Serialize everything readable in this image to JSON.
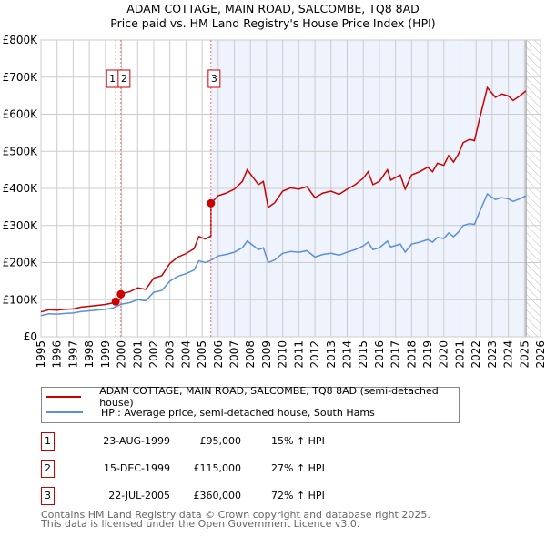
{
  "title": "ADAM COTTAGE, MAIN ROAD, SALCOMBE, TQ8 8AD",
  "subtitle": "Price paid vs. HM Land Registry's House Price Index (HPI)",
  "chart_data": {
    "type": "line",
    "xlim": [
      1995,
      2026
    ],
    "ylim": [
      0,
      800000
    ],
    "ytick_labels": [
      "£0",
      "£100K",
      "£200K",
      "£300K",
      "£400K",
      "£500K",
      "£600K",
      "£700K",
      "£800K"
    ],
    "xtick_labels": [
      "1995",
      "1996",
      "1997",
      "1998",
      "1999",
      "2000",
      "2001",
      "2002",
      "2003",
      "2004",
      "2005",
      "2006",
      "2007",
      "2008",
      "2009",
      "2010",
      "2011",
      "2012",
      "2013",
      "2014",
      "2015",
      "2016",
      "2017",
      "2018",
      "2019",
      "2020",
      "2021",
      "2022",
      "2023",
      "2024",
      "2025",
      "2026"
    ],
    "grid": true,
    "data_end": 2025.1,
    "hpi": {
      "name": "HPI: Average price, semi-detached house, South Hams",
      "color": "#5b8fd6",
      "x": [
        1995,
        1995.5,
        1996,
        1996.5,
        1997,
        1997.5,
        1998,
        1998.5,
        1999,
        1999.5,
        2000,
        2000.5,
        2001,
        2001.5,
        2002,
        2002.5,
        2003,
        2003.5,
        2004,
        2004.5,
        2004.8,
        2005.2,
        2005.5,
        2006,
        2006.5,
        2007,
        2007.5,
        2007.8,
        2008.2,
        2008.5,
        2008.8,
        2009.1,
        2009.5,
        2010,
        2010.5,
        2011,
        2011.5,
        2012,
        2012.5,
        2013,
        2013.5,
        2014,
        2014.5,
        2015,
        2015.3,
        2015.6,
        2016,
        2016.5,
        2016.7,
        2017,
        2017.3,
        2017.6,
        2018,
        2018.5,
        2019,
        2019.3,
        2019.6,
        2020,
        2020.3,
        2020.6,
        2020.9,
        2021.2,
        2021.6,
        2021.9,
        2022.2,
        2022.7,
        2023.2,
        2023.6,
        2024,
        2024.3,
        2024.7,
        2025.1
      ],
      "y": [
        57000,
        62000,
        61000,
        63000,
        64000,
        68000,
        70000,
        72000,
        74000,
        78000,
        88000,
        92000,
        100000,
        97000,
        120000,
        125000,
        150000,
        163000,
        170000,
        180000,
        205000,
        200000,
        205000,
        218000,
        222000,
        228000,
        240000,
        258000,
        245000,
        235000,
        240000,
        200000,
        207000,
        225000,
        230000,
        228000,
        232000,
        215000,
        222000,
        225000,
        220000,
        228000,
        235000,
        245000,
        255000,
        235000,
        240000,
        258000,
        242000,
        246000,
        250000,
        228000,
        250000,
        255000,
        262000,
        255000,
        268000,
        265000,
        280000,
        270000,
        282000,
        300000,
        305000,
        303000,
        335000,
        385000,
        370000,
        375000,
        372000,
        365000,
        372000,
        380000
      ]
    },
    "property": {
      "name": "ADAM COTTAGE, MAIN ROAD, SALCOMBE, TQ8 8AD (semi-detached house)",
      "color": "#cc0000"
    },
    "sales": [
      {
        "n": "1",
        "date": "23-AUG-1999",
        "x": 1999.64,
        "price": 95000,
        "price_label": "£95,000",
        "hpi_label": "15% ↑ HPI"
      },
      {
        "n": "2",
        "date": "15-DEC-1999",
        "x": 1999.96,
        "price": 115000,
        "price_label": "£115,000",
        "hpi_label": "27% ↑ HPI"
      },
      {
        "n": "3",
        "date": "22-JUL-2005",
        "x": 2005.55,
        "price": 360000,
        "price_label": "£360,000",
        "hpi_label": "72% ↑ HPI"
      }
    ]
  },
  "footer": {
    "line1": "Contains HM Land Registry data © Crown copyright and database right 2025.",
    "line2": "This data is licensed under the Open Government Licence v3.0."
  }
}
